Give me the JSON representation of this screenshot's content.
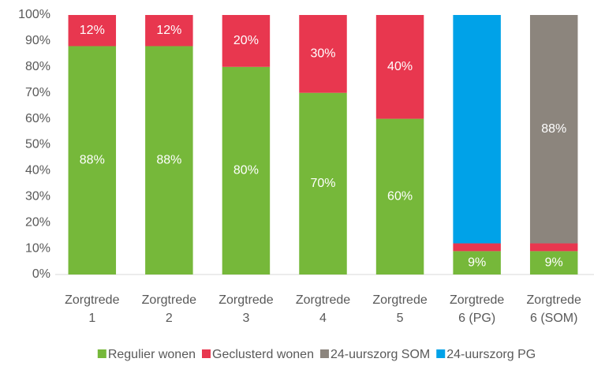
{
  "chart_data": {
    "type": "stacked_bar",
    "categories": [
      "Zorgtrede 1",
      "Zorgtrede 2",
      "Zorgtrede 3",
      "Zorgtrede 4",
      "Zorgtrede 5",
      "Zorgtrede 6 (PG)",
      "Zorgtrede 6 (SOM)"
    ],
    "series": [
      {
        "name": "Regulier wonen",
        "color": "#76b83a",
        "values": [
          88,
          88,
          80,
          70,
          60,
          9,
          9
        ],
        "value_labels": [
          "88%",
          "88%",
          "80%",
          "70%",
          "60%",
          "9%",
          "9%"
        ]
      },
      {
        "name": "Geclusterd wonen",
        "color": "#e8374f",
        "values": [
          12,
          12,
          20,
          30,
          40,
          3,
          3
        ],
        "value_labels": [
          "12%",
          "12%",
          "20%",
          "30%",
          "40%",
          null,
          null
        ]
      },
      {
        "name": "24-uurszorg SOM",
        "color": "#8c857d",
        "values": [
          0,
          0,
          0,
          0,
          0,
          0,
          88
        ],
        "value_labels": [
          null,
          null,
          null,
          null,
          null,
          null,
          "88%"
        ]
      },
      {
        "name": "24-uurszorg PG",
        "color": "#00a2e8",
        "values": [
          0,
          0,
          0,
          0,
          0,
          88,
          0
        ],
        "value_labels": [
          null,
          null,
          null,
          null,
          null,
          null,
          null
        ]
      }
    ],
    "ylim": [
      0,
      100
    ],
    "yticks": [
      {
        "value": 0,
        "label": "0%"
      },
      {
        "value": 10,
        "label": "10%"
      },
      {
        "value": 20,
        "label": "20%"
      },
      {
        "value": 30,
        "label": "30%"
      },
      {
        "value": 40,
        "label": "40%"
      },
      {
        "value": 50,
        "label": "50%"
      },
      {
        "value": 60,
        "label": "60%"
      },
      {
        "value": 70,
        "label": "70%"
      },
      {
        "value": 80,
        "label": "80%"
      },
      {
        "value": 90,
        "label": "90%"
      },
      {
        "value": 100,
        "label": "100%"
      }
    ],
    "grid": false,
    "legend": "bottom"
  }
}
